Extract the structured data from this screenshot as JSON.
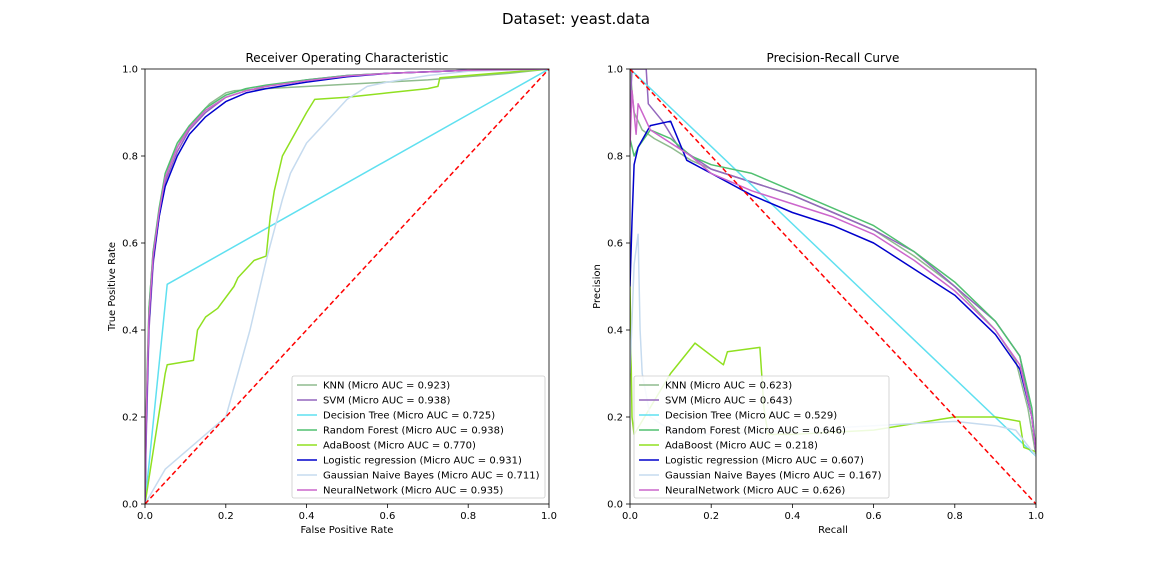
{
  "suptitle": "Dataset: yeast.data",
  "chart_data": [
    {
      "type": "line",
      "title": "Receiver Operating Characteristic",
      "xlabel": "False Positive Rate",
      "ylabel": "True Positive Rate",
      "xlim": [
        0,
        1
      ],
      "ylim": [
        0,
        1
      ],
      "xticks": [
        "0.0",
        "0.2",
        "0.4",
        "0.6",
        "0.8",
        "1.0"
      ],
      "yticks": [
        "0.0",
        "0.2",
        "0.4",
        "0.6",
        "0.8",
        "1.0"
      ],
      "legend_position": "lower-right",
      "reference_line": {
        "x": [
          0,
          1
        ],
        "y": [
          0,
          1
        ],
        "color": "#ff0000",
        "style": "dashed"
      },
      "series": [
        {
          "name": "KNN (Micro AUC = 0.923)",
          "color": "#8fbc8f",
          "x": [
            0,
            0.005,
            0.01,
            0.02,
            0.04,
            0.06,
            0.09,
            0.12,
            0.16,
            0.2,
            0.22,
            0.3,
            0.5,
            0.7,
            0.9,
            1.0
          ],
          "y": [
            0,
            0.3,
            0.45,
            0.58,
            0.7,
            0.78,
            0.84,
            0.88,
            0.92,
            0.945,
            0.95,
            0.955,
            0.965,
            0.975,
            0.99,
            1.0
          ]
        },
        {
          "name": "SVM (Micro AUC = 0.938)",
          "color": "#9467bd",
          "x": [
            0,
            0.003,
            0.01,
            0.02,
            0.035,
            0.05,
            0.08,
            0.11,
            0.15,
            0.2,
            0.25,
            0.3,
            0.4,
            0.5,
            0.6,
            0.8,
            1.0
          ],
          "y": [
            0,
            0.15,
            0.4,
            0.55,
            0.66,
            0.74,
            0.81,
            0.86,
            0.9,
            0.935,
            0.95,
            0.96,
            0.975,
            0.985,
            0.99,
            0.997,
            1.0
          ]
        },
        {
          "name": "Decision Tree (Micro AUC = 0.725)",
          "color": "#5fe0f0",
          "x": [
            0,
            0.055,
            1.0
          ],
          "y": [
            0,
            0.505,
            1.0
          ]
        },
        {
          "name": "Random Forest (Micro AUC = 0.938)",
          "color": "#50c070",
          "x": [
            0,
            0.003,
            0.01,
            0.02,
            0.035,
            0.05,
            0.08,
            0.11,
            0.15,
            0.2,
            0.25,
            0.3,
            0.4,
            0.5,
            0.6,
            0.8,
            1.0
          ],
          "y": [
            0,
            0.2,
            0.45,
            0.58,
            0.68,
            0.76,
            0.83,
            0.87,
            0.91,
            0.94,
            0.955,
            0.963,
            0.975,
            0.985,
            0.99,
            0.997,
            1.0
          ]
        },
        {
          "name": "AdaBoost (Micro AUC = 0.770)",
          "color": "#90e020",
          "x": [
            0,
            0.04,
            0.05,
            0.055,
            0.12,
            0.13,
            0.15,
            0.18,
            0.22,
            0.23,
            0.27,
            0.3,
            0.31,
            0.32,
            0.34,
            0.37,
            0.4,
            0.42,
            0.5,
            0.6,
            0.7,
            0.725,
            0.73,
            1.0
          ],
          "y": [
            0,
            0.24,
            0.3,
            0.32,
            0.33,
            0.4,
            0.43,
            0.45,
            0.5,
            0.52,
            0.56,
            0.57,
            0.66,
            0.72,
            0.8,
            0.85,
            0.9,
            0.93,
            0.935,
            0.945,
            0.955,
            0.96,
            0.98,
            1.0
          ]
        },
        {
          "name": "Logistic regression (Micro AUC = 0.931)",
          "color": "#0000cc",
          "x": [
            0,
            0.003,
            0.01,
            0.02,
            0.035,
            0.05,
            0.08,
            0.11,
            0.15,
            0.2,
            0.25,
            0.3,
            0.4,
            0.5,
            0.6,
            0.8,
            1.0
          ],
          "y": [
            0,
            0.18,
            0.42,
            0.56,
            0.66,
            0.73,
            0.8,
            0.85,
            0.89,
            0.925,
            0.945,
            0.955,
            0.97,
            0.982,
            0.99,
            0.997,
            1.0
          ]
        },
        {
          "name": "Gaussian Naive Bayes (Micro AUC = 0.711)",
          "color": "#c6dbef",
          "x": [
            0,
            0.05,
            0.1,
            0.15,
            0.2,
            0.23,
            0.26,
            0.28,
            0.3,
            0.32,
            0.34,
            0.36,
            0.4,
            0.45,
            0.5,
            0.55,
            0.6,
            0.7,
            0.8,
            1.0
          ],
          "y": [
            0,
            0.08,
            0.12,
            0.16,
            0.2,
            0.3,
            0.4,
            0.48,
            0.56,
            0.63,
            0.7,
            0.76,
            0.83,
            0.88,
            0.93,
            0.96,
            0.97,
            0.985,
            0.995,
            1.0
          ]
        },
        {
          "name": "NeuralNetwork (Micro AUC = 0.935)",
          "color": "#cc66cc",
          "x": [
            0,
            0.003,
            0.01,
            0.02,
            0.035,
            0.05,
            0.08,
            0.11,
            0.15,
            0.2,
            0.25,
            0.3,
            0.4,
            0.5,
            0.6,
            0.8,
            1.0
          ],
          "y": [
            0,
            0.2,
            0.43,
            0.57,
            0.67,
            0.75,
            0.82,
            0.865,
            0.905,
            0.935,
            0.95,
            0.96,
            0.973,
            0.984,
            0.99,
            0.997,
            1.0
          ]
        }
      ]
    },
    {
      "type": "line",
      "title": "Precision-Recall Curve",
      "xlabel": "Recall",
      "ylabel": "Precision",
      "xlim": [
        0,
        1
      ],
      "ylim": [
        0,
        1
      ],
      "xticks": [
        "0.0",
        "0.2",
        "0.4",
        "0.6",
        "0.8",
        "1.0"
      ],
      "yticks": [
        "0.0",
        "0.2",
        "0.4",
        "0.6",
        "0.8",
        "1.0"
      ],
      "legend_position": "lower-left",
      "reference_line": {
        "x": [
          0,
          1
        ],
        "y": [
          1,
          0
        ],
        "color": "#ff0000",
        "style": "dashed"
      },
      "series": [
        {
          "name": "KNN (Micro AUC = 0.623)",
          "color": "#8fbc8f",
          "x": [
            0,
            0.01,
            0.03,
            0.06,
            0.1,
            0.15,
            0.2,
            0.3,
            0.4,
            0.5,
            0.6,
            0.7,
            0.8,
            0.9,
            0.95,
            0.98,
            1.0
          ],
          "y": [
            1.0,
            0.9,
            0.86,
            0.84,
            0.82,
            0.79,
            0.77,
            0.74,
            0.71,
            0.67,
            0.63,
            0.57,
            0.5,
            0.4,
            0.33,
            0.22,
            0.11
          ]
        },
        {
          "name": "SVM (Micro AUC = 0.643)",
          "color": "#9467bd",
          "x": [
            0,
            0.005,
            0.04,
            0.045,
            0.08,
            0.12,
            0.2,
            0.3,
            0.4,
            0.5,
            0.6,
            0.7,
            0.8,
            0.9,
            0.96,
            0.99,
            1.0
          ],
          "y": [
            0.9,
            1.0,
            1.0,
            0.92,
            0.88,
            0.82,
            0.77,
            0.74,
            0.71,
            0.67,
            0.63,
            0.58,
            0.5,
            0.42,
            0.34,
            0.2,
            0.12
          ]
        },
        {
          "name": "Decision Tree (Micro AUC = 0.529)",
          "color": "#5fe0f0",
          "x": [
            0,
            1.0
          ],
          "y": [
            1.0,
            0.11
          ]
        },
        {
          "name": "Random Forest (Micro AUC = 0.646)",
          "color": "#50c070",
          "x": [
            0,
            0.01,
            0.02,
            0.05,
            0.1,
            0.15,
            0.2,
            0.3,
            0.4,
            0.5,
            0.6,
            0.7,
            0.8,
            0.9,
            0.96,
            0.99,
            1.0
          ],
          "y": [
            0.84,
            0.8,
            0.82,
            0.86,
            0.84,
            0.8,
            0.78,
            0.76,
            0.72,
            0.68,
            0.64,
            0.58,
            0.51,
            0.42,
            0.34,
            0.22,
            0.12
          ]
        },
        {
          "name": "AdaBoost (Micro AUC = 0.218)",
          "color": "#90e020",
          "x": [
            0,
            0.005,
            0.01,
            0.1,
            0.16,
            0.23,
            0.24,
            0.32,
            0.33,
            0.34,
            0.4,
            0.6,
            0.8,
            0.9,
            0.96,
            0.97,
            1.0
          ],
          "y": [
            0.5,
            0.2,
            0.16,
            0.3,
            0.37,
            0.32,
            0.35,
            0.36,
            0.22,
            0.16,
            0.16,
            0.17,
            0.2,
            0.2,
            0.19,
            0.13,
            0.12
          ]
        },
        {
          "name": "Logistic regression (Micro AUC = 0.607)",
          "color": "#0000cc",
          "x": [
            0,
            0.005,
            0.01,
            0.02,
            0.05,
            0.1,
            0.14,
            0.2,
            0.3,
            0.4,
            0.5,
            0.6,
            0.7,
            0.8,
            0.9,
            0.96,
            0.99,
            1.0
          ],
          "y": [
            0.5,
            0.65,
            0.78,
            0.82,
            0.87,
            0.88,
            0.79,
            0.76,
            0.71,
            0.67,
            0.64,
            0.6,
            0.54,
            0.48,
            0.39,
            0.31,
            0.2,
            0.12
          ]
        },
        {
          "name": "Gaussian Naive Bayes (Micro AUC = 0.167)",
          "color": "#c6dbef",
          "x": [
            0,
            0.01,
            0.02,
            0.025,
            0.03,
            0.05,
            0.1,
            0.2,
            0.4,
            0.6,
            0.8,
            0.9,
            0.95,
            1.0
          ],
          "y": [
            0.3,
            0.55,
            0.62,
            0.4,
            0.3,
            0.2,
            0.17,
            0.16,
            0.17,
            0.18,
            0.19,
            0.18,
            0.17,
            0.11
          ]
        },
        {
          "name": "NeuralNetwork (Micro AUC = 0.626)",
          "color": "#cc66cc",
          "x": [
            0,
            0.005,
            0.015,
            0.02,
            0.03,
            0.05,
            0.1,
            0.15,
            0.2,
            0.3,
            0.4,
            0.5,
            0.6,
            0.7,
            0.8,
            0.9,
            0.96,
            0.99,
            1.0
          ],
          "y": [
            0.82,
            0.95,
            0.85,
            0.92,
            0.9,
            0.86,
            0.83,
            0.8,
            0.76,
            0.72,
            0.69,
            0.66,
            0.62,
            0.56,
            0.49,
            0.4,
            0.32,
            0.2,
            0.12
          ]
        }
      ]
    }
  ]
}
